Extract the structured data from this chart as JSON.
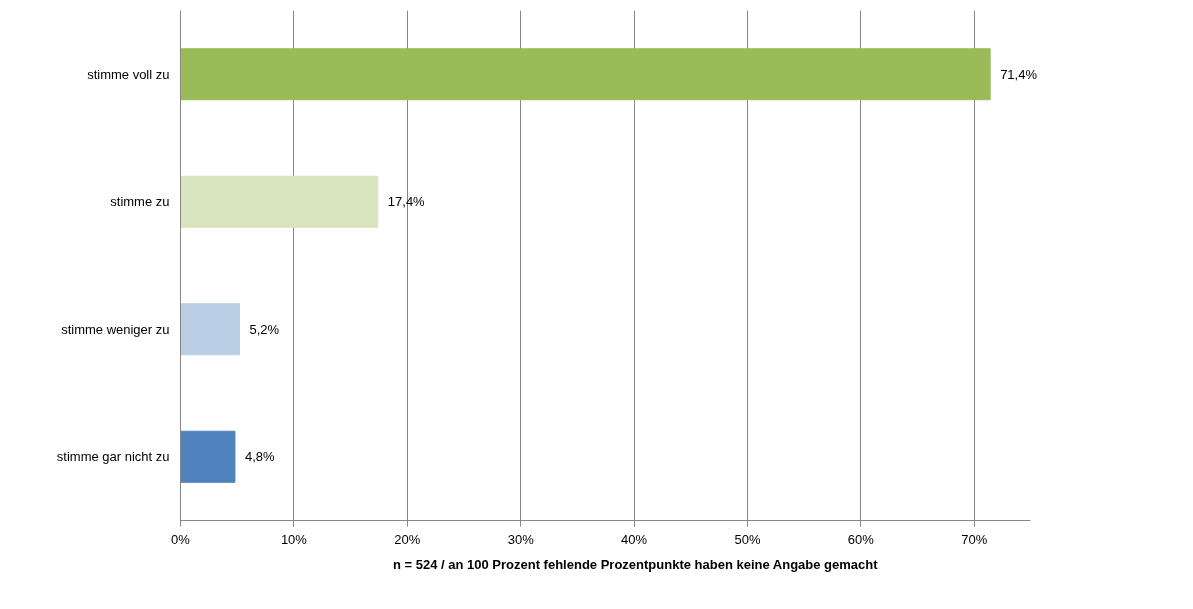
{
  "chart_data": {
    "type": "bar",
    "orientation": "horizontal",
    "categories": [
      "stimme voll zu",
      "stimme zu",
      "stimme weniger zu",
      "stimme gar nicht zu"
    ],
    "values": [
      71.4,
      17.4,
      5.2,
      4.8
    ],
    "colors": [
      "#9bbb59",
      "#d7e4bd",
      "#b9cde5",
      "#4f81bd"
    ],
    "value_labels": [
      "71,4%",
      "17,4%",
      "5,2%",
      "4,8%"
    ],
    "xlim": [
      0,
      75
    ],
    "xticks": [
      {
        "value": 0,
        "label": "0%"
      },
      {
        "value": 10,
        "label": "10%"
      },
      {
        "value": 20,
        "label": "20%"
      },
      {
        "value": 30,
        "label": "30%"
      },
      {
        "value": 40,
        "label": "40%"
      },
      {
        "value": 50,
        "label": "50%"
      },
      {
        "value": 60,
        "label": "60%"
      },
      {
        "value": 70,
        "label": "70%"
      }
    ],
    "grid": "x",
    "annotations": [
      "n = 524 / an 100 Prozent fehlende Prozentpunkte haben keine Angabe gemacht"
    ]
  }
}
